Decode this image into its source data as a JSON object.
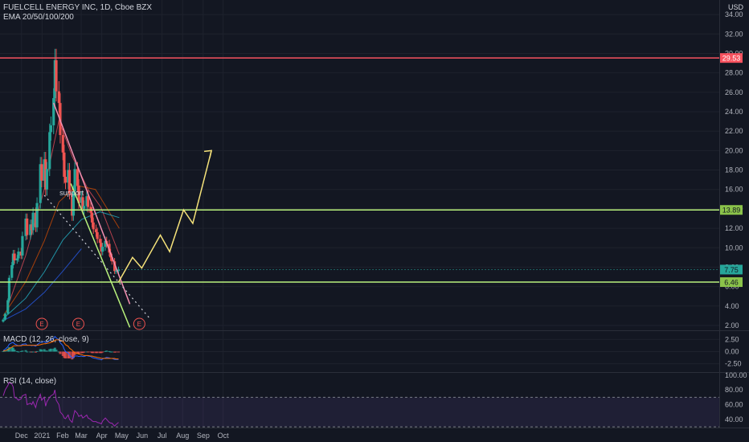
{
  "header": {
    "symbol_line": "FUELCELL ENERGY INC, 1D, Cboe BZX",
    "ema_line": "EMA 20/50/100/200",
    "currency": "USD"
  },
  "panels": {
    "macd_label": "MACD (12, 26, close, 9)",
    "rsi_label": "RSI (14, close)"
  },
  "annotations": {
    "support_text": "support",
    "earnings_marker": "E"
  },
  "price_labels": [
    {
      "text": "29.53",
      "color": "#f7525f"
    },
    {
      "text": "13.89",
      "color": "#8bc34a"
    },
    {
      "text": "7.75",
      "color": "#26a69a"
    },
    {
      "text": "6.46",
      "color": "#8bc34a"
    }
  ],
  "colors": {
    "background": "#131722",
    "up": "#26a69a",
    "down": "#ef5350",
    "resistance": "#f7525f",
    "support": "#b9f27c",
    "projection": "#f5e27a",
    "rsi_line": "#9c27b0",
    "grid": "#1e222d"
  },
  "chart_data": [
    {
      "type": "candlestick",
      "title": "FUELCELL ENERGY INC, 1D, Cboe BZX",
      "xlabel": "",
      "ylabel": "USD",
      "x_ticks": [
        "Dec",
        "2021",
        "Feb",
        "Mar",
        "Apr",
        "May",
        "Jun",
        "Jul",
        "Aug",
        "Sep",
        "Oct"
      ],
      "y_ticks": [
        2.0,
        4.0,
        6.0,
        8.0,
        10.0,
        12.0,
        14.0,
        16.0,
        18.0,
        20.0,
        22.0,
        24.0,
        26.0,
        28.0,
        30.0,
        32.0,
        34.0
      ],
      "ylim": [
        1.5,
        35.5
      ],
      "close_series": [
        [
          "2020-11-24",
          2.6
        ],
        [
          "2020-11-27",
          3.2
        ],
        [
          "2020-12-01",
          4.6
        ],
        [
          "2020-12-03",
          6.9
        ],
        [
          "2020-12-07",
          8.2
        ],
        [
          "2020-12-09",
          9.4
        ],
        [
          "2020-12-11",
          8.7
        ],
        [
          "2020-12-15",
          8.9
        ],
        [
          "2020-12-17",
          9.6
        ],
        [
          "2020-12-21",
          9.2
        ],
        [
          "2020-12-23",
          11.2
        ],
        [
          "2020-12-28",
          13.0
        ],
        [
          "2020-12-30",
          11.3
        ],
        [
          "2021-01-04",
          12.4
        ],
        [
          "2021-01-06",
          11.8
        ],
        [
          "2021-01-08",
          13.6
        ],
        [
          "2021-01-12",
          12.1
        ],
        [
          "2021-01-14",
          14.6
        ],
        [
          "2021-01-19",
          18.6
        ],
        [
          "2021-01-21",
          16.9
        ],
        [
          "2021-01-25",
          19.1
        ],
        [
          "2021-01-27",
          16.0
        ],
        [
          "2021-01-29",
          18.1
        ],
        [
          "2021-02-02",
          21.9
        ],
        [
          "2021-02-04",
          22.6
        ],
        [
          "2021-02-08",
          25.4
        ],
        [
          "2021-02-10",
          29.3
        ],
        [
          "2021-02-12",
          26.1
        ],
        [
          "2021-02-16",
          24.9
        ],
        [
          "2021-02-18",
          21.6
        ],
        [
          "2021-02-22",
          19.8
        ],
        [
          "2021-02-24",
          17.3
        ],
        [
          "2021-02-26",
          16.7
        ],
        [
          "2021-03-02",
          18.0
        ],
        [
          "2021-03-04",
          15.6
        ],
        [
          "2021-03-08",
          13.3
        ],
        [
          "2021-03-10",
          15.8
        ],
        [
          "2021-03-12",
          18.1
        ],
        [
          "2021-03-16",
          16.4
        ],
        [
          "2021-03-18",
          14.6
        ],
        [
          "2021-03-22",
          15.2
        ],
        [
          "2021-03-24",
          14.0
        ],
        [
          "2021-03-26",
          14.3
        ],
        [
          "2021-03-30",
          15.3
        ],
        [
          "2021-04-01",
          14.2
        ],
        [
          "2021-04-05",
          13.6
        ],
        [
          "2021-04-07",
          12.6
        ],
        [
          "2021-04-09",
          11.9
        ],
        [
          "2021-04-13",
          11.6
        ],
        [
          "2021-04-15",
          10.9
        ],
        [
          "2021-04-19",
          10.5
        ],
        [
          "2021-04-21",
          9.6
        ],
        [
          "2021-04-23",
          10.1
        ],
        [
          "2021-04-27",
          10.7
        ],
        [
          "2021-04-29",
          10.4
        ],
        [
          "2021-05-03",
          9.5
        ],
        [
          "2021-05-05",
          9.0
        ],
        [
          "2021-05-07",
          8.6
        ],
        [
          "2021-05-11",
          7.6
        ],
        [
          "2021-05-13",
          7.6
        ],
        [
          "2021-05-17",
          7.75
        ]
      ],
      "horizontal_levels": [
        29.53,
        13.89,
        6.46
      ],
      "last_price": 7.75,
      "projection_path": [
        [
          "2021-05-17",
          6.46
        ],
        [
          "2021-06-07",
          9.0
        ],
        [
          "2021-06-21",
          7.9
        ],
        [
          "2021-07-19",
          11.3
        ],
        [
          "2021-08-02",
          9.6
        ],
        [
          "2021-08-23",
          13.9
        ],
        [
          "2021-09-06",
          12.5
        ],
        [
          "2021-10-04",
          20.0
        ]
      ],
      "trendlines": [
        {
          "name": "channel-top",
          "from": [
            "2021-02-08",
            24.9
          ],
          "to": [
            "2021-06-03",
            4.2
          ]
        },
        {
          "name": "channel-bottom",
          "from": [
            "2021-03-06",
            16.6
          ],
          "to": [
            "2021-06-03",
            1.8
          ]
        },
        {
          "name": "support-dotted",
          "from": [
            "2021-01-25",
            15.4
          ],
          "to": [
            "2021-07-02",
            2.8
          ]
        }
      ],
      "ema_series": [
        {
          "name": "EMA 20",
          "color": "#f7525f",
          "points": [
            [
              "2020-12-01",
              4.0
            ],
            [
              "2020-12-28",
              9.2
            ],
            [
              "2021-01-25",
              16.0
            ],
            [
              "2021-02-16",
              23.1
            ],
            [
              "2021-03-08",
              19.4
            ],
            [
              "2021-04-01",
              16.0
            ],
            [
              "2021-04-20",
              14.2
            ],
            [
              "2021-05-18",
              9.3
            ]
          ]
        },
        {
          "name": "EMA 50",
          "color": "#e65100",
          "points": [
            [
              "2020-11-24",
              3.0
            ],
            [
              "2020-12-28",
              6.5
            ],
            [
              "2021-01-25",
              10.7
            ],
            [
              "2021-02-16",
              14.7
            ],
            [
              "2021-03-15",
              16.4
            ],
            [
              "2021-04-12",
              16.0
            ],
            [
              "2021-05-18",
              12.0
            ]
          ]
        },
        {
          "name": "EMA 100",
          "color": "#26c6da",
          "points": [
            [
              "2020-11-24",
              2.7
            ],
            [
              "2020-12-28",
              4.8
            ],
            [
              "2021-01-25",
              7.5
            ],
            [
              "2021-02-22",
              10.8
            ],
            [
              "2021-03-22",
              12.9
            ],
            [
              "2021-04-19",
              13.7
            ],
            [
              "2021-05-18",
              13.1
            ]
          ]
        },
        {
          "name": "EMA 200",
          "color": "#2962ff",
          "points": [
            [
              "2020-11-24",
              2.5
            ],
            [
              "2020-12-28",
              3.7
            ],
            [
              "2021-01-25",
              5.4
            ],
            [
              "2021-02-22",
              7.6
            ],
            [
              "2021-03-22",
              9.9
            ]
          ]
        }
      ],
      "earnings_dates": [
        "2021-01-14",
        "2021-03-10",
        "2021-06-10"
      ]
    },
    {
      "type": "macd",
      "title": "MACD (12, 26, close, 9)",
      "y_ticks": [
        2.5,
        0.0,
        -2.5
      ],
      "ylim": [
        -4.2,
        4.2
      ],
      "macd": [
        0.2,
        0.5,
        1.0,
        1.5,
        1.8,
        1.9,
        1.6,
        1.3,
        1.2,
        1.3,
        1.5,
        1.6,
        1.3,
        1.3,
        1.2,
        1.3,
        1.1,
        1.4,
        1.9,
        1.9,
        2.1,
        1.8,
        1.9,
        2.3,
        2.5,
        2.7,
        3.1,
        2.8,
        2.4,
        1.8,
        1.2,
        0.5,
        0.0,
        -0.3,
        -0.7,
        -1.3,
        -1.3,
        -0.9,
        -0.9,
        -1.0,
        -0.9,
        -1.0,
        -1.0,
        -0.8,
        -0.9,
        -1.0,
        -1.2,
        -1.3,
        -1.4,
        -1.5,
        -1.6,
        -1.7,
        -1.5,
        -1.3,
        -1.2,
        -1.3,
        -1.4,
        -1.4,
        -1.6,
        -1.6,
        -1.6
      ],
      "signal": [
        0.1,
        0.2,
        0.4,
        0.6,
        0.9,
        1.1,
        1.2,
        1.2,
        1.2,
        1.2,
        1.3,
        1.3,
        1.3,
        1.3,
        1.3,
        1.3,
        1.3,
        1.3,
        1.4,
        1.5,
        1.6,
        1.6,
        1.7,
        1.8,
        1.9,
        2.1,
        2.3,
        2.4,
        2.4,
        2.3,
        2.1,
        1.8,
        1.4,
        1.1,
        0.7,
        0.3,
        0.0,
        -0.2,
        -0.4,
        -0.5,
        -0.6,
        -0.7,
        -0.8,
        -0.8,
        -0.8,
        -0.9,
        -0.9,
        -1.0,
        -1.1,
        -1.2,
        -1.3,
        -1.4,
        -1.4,
        -1.4,
        -1.4,
        -1.4,
        -1.4,
        -1.4,
        -1.4,
        -1.5,
        -1.5
      ]
    },
    {
      "type": "line",
      "title": "RSI (14, close)",
      "y_ticks": [
        100.0,
        80.0,
        60.0,
        40.0
      ],
      "ylim": [
        29,
        103
      ],
      "bands": [
        70,
        30
      ],
      "values": [
        72,
        80,
        86,
        90,
        88,
        84,
        70,
        68,
        66,
        68,
        72,
        74,
        60,
        62,
        60,
        64,
        56,
        64,
        74,
        66,
        70,
        58,
        64,
        70,
        72,
        74,
        80,
        66,
        60,
        50,
        46,
        42,
        41,
        46,
        40,
        36,
        44,
        52,
        48,
        44,
        46,
        42,
        43,
        46,
        42,
        40,
        38,
        37,
        37,
        36,
        35,
        34,
        38,
        42,
        40,
        36,
        35,
        35,
        31,
        33,
        36
      ]
    }
  ]
}
